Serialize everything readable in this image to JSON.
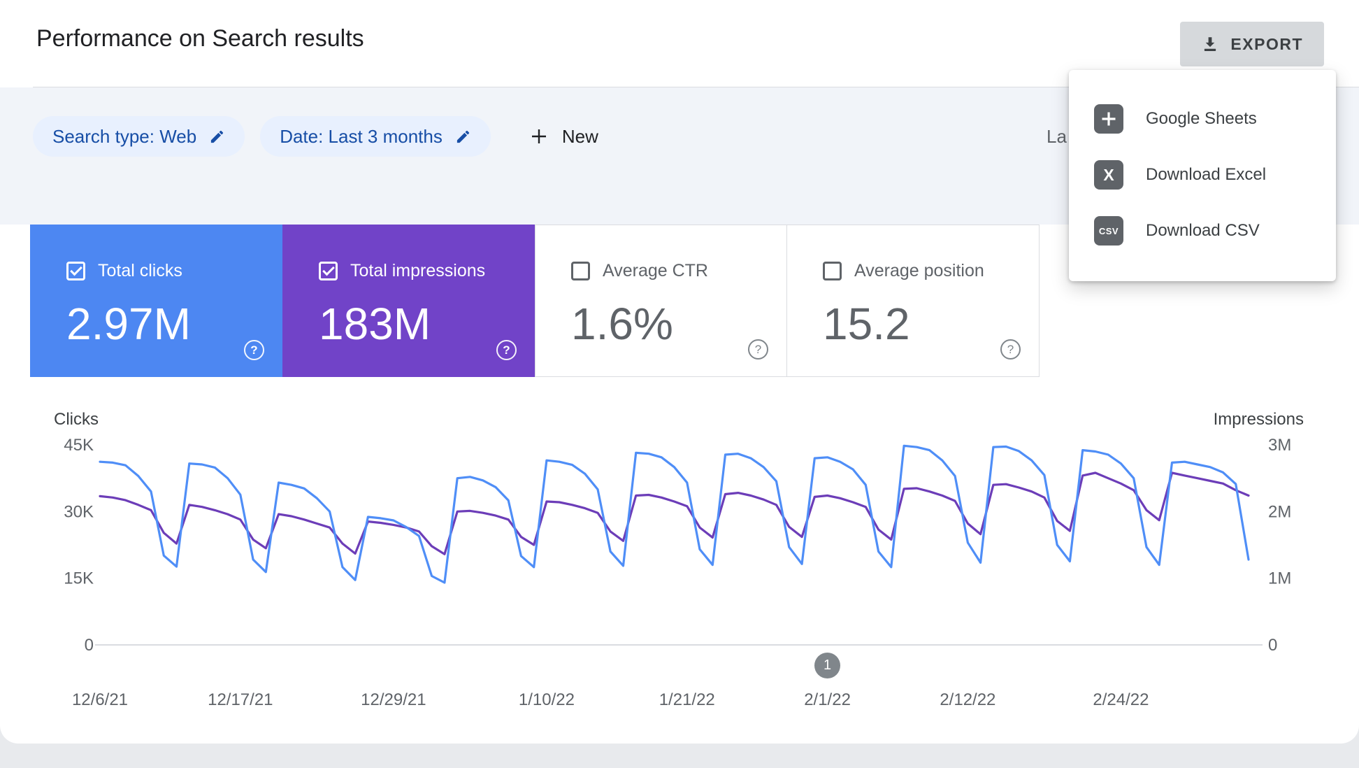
{
  "page": {
    "title": "Performance on Search results",
    "background": "#e8eaed",
    "surface": "#ffffff"
  },
  "toolbar": {
    "export_label": "EXPORT"
  },
  "export_menu": {
    "items": [
      {
        "label": "Google Sheets",
        "icon": "google-sheets-icon",
        "icon_text": ""
      },
      {
        "label": "Download Excel",
        "icon": "excel-icon",
        "icon_text": "X"
      },
      {
        "label": "Download CSV",
        "icon": "csv-icon",
        "icon_text": "CSV"
      }
    ]
  },
  "filters": {
    "search_type": "Search type: Web",
    "date_range": "Date: Last 3 months",
    "new_label": "New",
    "clipped_text": "La"
  },
  "metric_cards": [
    {
      "label": "Total clicks",
      "value": "2.97M",
      "checked": true,
      "color": "#4d87f2"
    },
    {
      "label": "Total impressions",
      "value": "183M",
      "checked": true,
      "color": "#7143c8"
    },
    {
      "label": "Average CTR",
      "value": "1.6%",
      "checked": false,
      "color": "#ffffff"
    },
    {
      "label": "Average position",
      "value": "15.2",
      "checked": false,
      "color": "#ffffff"
    }
  ],
  "pagination": {
    "page": "1",
    "day": 57
  },
  "chart_data": {
    "type": "line",
    "legend_position": "none",
    "grid": false,
    "total_days": 90,
    "left_axis": {
      "label": "Clicks",
      "ticks": [
        "45K",
        "30K",
        "15K",
        "0"
      ],
      "max": 45,
      "unit": "thousands"
    },
    "right_axis": {
      "label": "Impressions",
      "ticks": [
        "3M",
        "2M",
        "1M",
        "0"
      ],
      "max": 3,
      "unit": "millions"
    },
    "ticks": [
      {
        "label": "12/6/21",
        "day": 0
      },
      {
        "label": "12/17/21",
        "day": 11
      },
      {
        "label": "12/29/21",
        "day": 23
      },
      {
        "label": "1/10/22",
        "day": 35
      },
      {
        "label": "1/21/22",
        "day": 46
      },
      {
        "label": "2/1/22",
        "day": 57
      },
      {
        "label": "2/12/22",
        "day": 68
      },
      {
        "label": "2/24/22",
        "day": 80
      }
    ],
    "series": [
      {
        "name": "Clicks",
        "axis": "left",
        "color": "#4f8ef7",
        "unit": "thousands",
        "values": [
          41.2,
          41.0,
          40.4,
          38.0,
          34.5,
          20.1,
          17.6,
          40.8,
          40.6,
          39.9,
          37.5,
          33.8,
          19.2,
          16.4,
          36.5,
          36.0,
          35.2,
          33.0,
          30.0,
          17.5,
          14.6,
          28.8,
          28.5,
          28.0,
          26.5,
          24.5,
          15.5,
          14.0,
          37.5,
          37.8,
          37.0,
          35.5,
          32.5,
          20.0,
          17.5,
          41.5,
          41.2,
          40.5,
          38.5,
          35.0,
          21.0,
          17.8,
          43.2,
          43.0,
          42.2,
          40.0,
          36.5,
          21.5,
          18.0,
          42.8,
          43.0,
          42.0,
          40.0,
          36.8,
          22.0,
          18.2,
          42.0,
          42.2,
          41.2,
          39.5,
          36.0,
          21.0,
          17.5,
          44.8,
          44.5,
          43.8,
          41.5,
          38.0,
          23.0,
          18.5,
          44.5,
          44.6,
          43.6,
          41.5,
          38.2,
          22.5,
          18.8,
          43.8,
          43.5,
          42.8,
          40.8,
          37.5,
          22.0,
          18.0,
          41.0,
          41.2,
          40.6,
          40.0,
          38.8,
          36.2,
          19.2
        ]
      },
      {
        "name": "Impressions",
        "axis": "right",
        "color": "#6c3db8",
        "unit": "millions",
        "values": [
          2.23,
          2.21,
          2.17,
          2.1,
          2.02,
          1.68,
          1.52,
          2.1,
          2.07,
          2.02,
          1.96,
          1.88,
          1.58,
          1.45,
          1.96,
          1.93,
          1.88,
          1.82,
          1.76,
          1.52,
          1.37,
          1.85,
          1.83,
          1.8,
          1.76,
          1.7,
          1.48,
          1.36,
          2.0,
          2.01,
          1.98,
          1.94,
          1.88,
          1.62,
          1.5,
          2.15,
          2.14,
          2.1,
          2.05,
          1.98,
          1.7,
          1.56,
          2.24,
          2.25,
          2.21,
          2.15,
          2.08,
          1.76,
          1.61,
          2.26,
          2.28,
          2.24,
          2.18,
          2.1,
          1.77,
          1.62,
          2.22,
          2.24,
          2.2,
          2.14,
          2.07,
          1.73,
          1.58,
          2.34,
          2.35,
          2.3,
          2.24,
          2.16,
          1.82,
          1.66,
          2.4,
          2.41,
          2.36,
          2.3,
          2.21,
          1.86,
          1.71,
          2.54,
          2.58,
          2.5,
          2.42,
          2.32,
          2.02,
          1.87,
          2.58,
          2.54,
          2.5,
          2.46,
          2.42,
          2.32,
          2.24
        ]
      }
    ]
  }
}
